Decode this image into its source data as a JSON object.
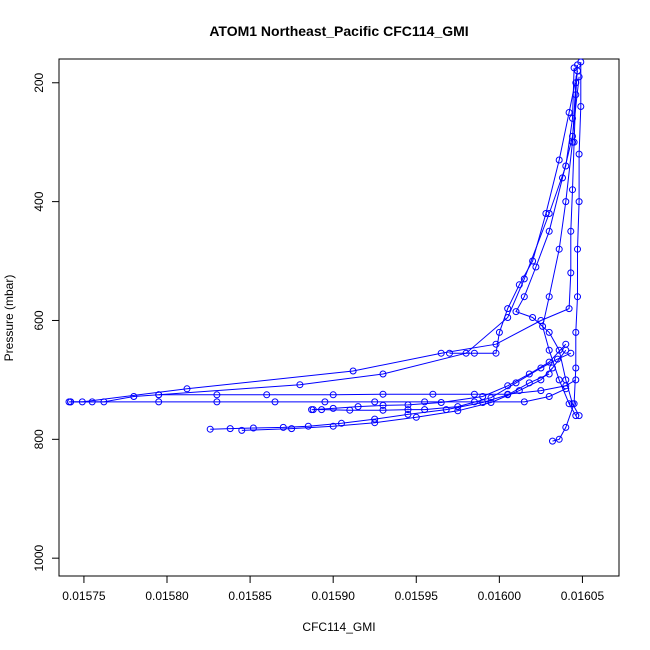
{
  "chart_data": {
    "type": "scatter",
    "title": "ATOM1 Northeast_Pacific CFC114_GMI",
    "xlabel": "CFC114_GMI",
    "ylabel": "Pressure (mbar)",
    "xlim": [
      0.015735,
      0.016072
    ],
    "ylim": [
      1030,
      160
    ],
    "y_reversed": true,
    "x_ticks": [
      0.01575,
      0.0158,
      0.01585,
      0.0159,
      0.01595,
      0.016,
      0.01605
    ],
    "x_tick_labels": [
      "0.01575",
      "0.01580",
      "0.01585",
      "0.01590",
      "0.01595",
      "0.01600",
      "0.01605"
    ],
    "y_ticks": [
      200,
      400,
      600,
      800,
      1000
    ],
    "y_tick_labels": [
      "200",
      "400",
      "600",
      "800",
      "1000"
    ],
    "grid": false,
    "series_color": "#0000ff",
    "marker": "open-circle",
    "series": [
      {
        "name": "",
        "points": [
          [
            0.016047,
            170
          ],
          [
            0.016046,
            220
          ],
          [
            0.016045,
            300
          ],
          [
            0.016044,
            380
          ],
          [
            0.016043,
            450
          ],
          [
            0.016043,
            520
          ],
          [
            0.016042,
            580
          ],
          [
            0.016025,
            600
          ],
          [
            0.015998,
            640
          ],
          [
            0.015965,
            655
          ],
          [
            0.015912,
            685
          ],
          [
            0.015812,
            715
          ],
          [
            0.015749,
            737
          ],
          [
            0.015741,
            737
          ]
        ]
      },
      {
        "name": "",
        "points": [
          [
            0.016045,
            175
          ],
          [
            0.016044,
            260
          ],
          [
            0.01604,
            340
          ],
          [
            0.01603,
            420
          ],
          [
            0.016015,
            530
          ],
          [
            0.016005,
            595
          ],
          [
            0.01598,
            655
          ],
          [
            0.01593,
            690
          ],
          [
            0.01588,
            708
          ],
          [
            0.015795,
            725
          ],
          [
            0.01578,
            728
          ],
          [
            0.015762,
            737
          ],
          [
            0.015742,
            737
          ]
        ]
      },
      {
        "name": "",
        "points": [
          [
            0.015742,
            737
          ],
          [
            0.015755,
            737
          ],
          [
            0.015795,
            737
          ],
          [
            0.01583,
            737
          ],
          [
            0.015865,
            737
          ],
          [
            0.015895,
            737
          ],
          [
            0.015925,
            737
          ],
          [
            0.015955,
            737
          ],
          [
            0.015985,
            737
          ],
          [
            0.016015,
            737
          ],
          [
            0.01603,
            728
          ],
          [
            0.01604,
            715
          ]
        ]
      },
      {
        "name": "",
        "points": [
          [
            0.015795,
            725
          ],
          [
            0.01583,
            725
          ],
          [
            0.01586,
            725
          ],
          [
            0.0159,
            725
          ],
          [
            0.01593,
            724
          ],
          [
            0.01596,
            724
          ],
          [
            0.015985,
            724
          ],
          [
            0.016005,
            724
          ],
          [
            0.016025,
            718
          ],
          [
            0.01604,
            710
          ],
          [
            0.016046,
            700
          ]
        ]
      },
      {
        "name": "",
        "points": [
          [
            0.015887,
            750
          ],
          [
            0.015893,
            750
          ],
          [
            0.01591,
            751
          ],
          [
            0.01593,
            751
          ],
          [
            0.015945,
            750
          ],
          [
            0.015955,
            750
          ],
          [
            0.015975,
            745
          ],
          [
            0.015995,
            730
          ],
          [
            0.01601,
            705
          ],
          [
            0.016025,
            680
          ],
          [
            0.016035,
            665
          ],
          [
            0.016043,
            655
          ]
        ]
      },
      {
        "name": "",
        "points": [
          [
            0.015888,
            750
          ],
          [
            0.0159,
            748
          ],
          [
            0.015915,
            745
          ],
          [
            0.01593,
            743
          ],
          [
            0.015945,
            742
          ],
          [
            0.015965,
            738
          ],
          [
            0.01599,
            728
          ],
          [
            0.016005,
            710
          ],
          [
            0.016018,
            690
          ],
          [
            0.01603,
            670
          ],
          [
            0.01604,
            640
          ]
        ]
      },
      {
        "name": "",
        "points": [
          [
            0.015826,
            783
          ],
          [
            0.015838,
            782
          ],
          [
            0.015852,
            781
          ],
          [
            0.01587,
            780
          ],
          [
            0.015885,
            778
          ],
          [
            0.015905,
            773
          ],
          [
            0.015925,
            766
          ],
          [
            0.015945,
            758
          ],
          [
            0.015968,
            750
          ],
          [
            0.01599,
            738
          ],
          [
            0.016005,
            725
          ],
          [
            0.016018,
            705
          ],
          [
            0.01603,
            690
          ]
        ]
      },
      {
        "name": "",
        "points": [
          [
            0.015845,
            785
          ],
          [
            0.015875,
            782
          ],
          [
            0.0159,
            778
          ],
          [
            0.015925,
            772
          ],
          [
            0.01595,
            763
          ],
          [
            0.015975,
            752
          ],
          [
            0.015995,
            738
          ],
          [
            0.016012,
            718
          ],
          [
            0.016025,
            700
          ],
          [
            0.016032,
            680
          ],
          [
            0.01604,
            650
          ]
        ]
      },
      {
        "name": "",
        "points": [
          [
            0.016049,
            165
          ],
          [
            0.016049,
            240
          ],
          [
            0.016048,
            320
          ],
          [
            0.016048,
            400
          ],
          [
            0.016047,
            480
          ],
          [
            0.016047,
            560
          ],
          [
            0.016046,
            620
          ],
          [
            0.016046,
            680
          ],
          [
            0.016045,
            740
          ],
          [
            0.01604,
            780
          ],
          [
            0.016036,
            800
          ],
          [
            0.016032,
            803
          ]
        ]
      },
      {
        "name": "",
        "points": [
          [
            0.016048,
            190
          ],
          [
            0.016044,
            290
          ],
          [
            0.016038,
            360
          ],
          [
            0.01603,
            450
          ],
          [
            0.016022,
            510
          ],
          [
            0.016015,
            560
          ],
          [
            0.01601,
            585
          ],
          [
            0.01602,
            595
          ],
          [
            0.01603,
            620
          ],
          [
            0.016036,
            650
          ],
          [
            0.01604,
            700
          ],
          [
            0.016044,
            740
          ],
          [
            0.016048,
            760
          ]
        ]
      },
      {
        "name": "",
        "points": [
          [
            0.016047,
            180
          ],
          [
            0.016042,
            250
          ],
          [
            0.016036,
            330
          ],
          [
            0.016028,
            420
          ],
          [
            0.01602,
            500
          ],
          [
            0.016012,
            540
          ],
          [
            0.016005,
            580
          ],
          [
            0.016,
            620
          ],
          [
            0.015998,
            655
          ],
          [
            0.015985,
            655
          ],
          [
            0.01597,
            655
          ]
        ]
      },
      {
        "name": "",
        "points": [
          [
            0.016046,
            200
          ],
          [
            0.016044,
            300
          ],
          [
            0.01604,
            400
          ],
          [
            0.016036,
            480
          ],
          [
            0.01603,
            560
          ],
          [
            0.016026,
            610
          ],
          [
            0.01603,
            650
          ],
          [
            0.016036,
            700
          ],
          [
            0.016042,
            740
          ],
          [
            0.016046,
            760
          ]
        ]
      }
    ]
  }
}
